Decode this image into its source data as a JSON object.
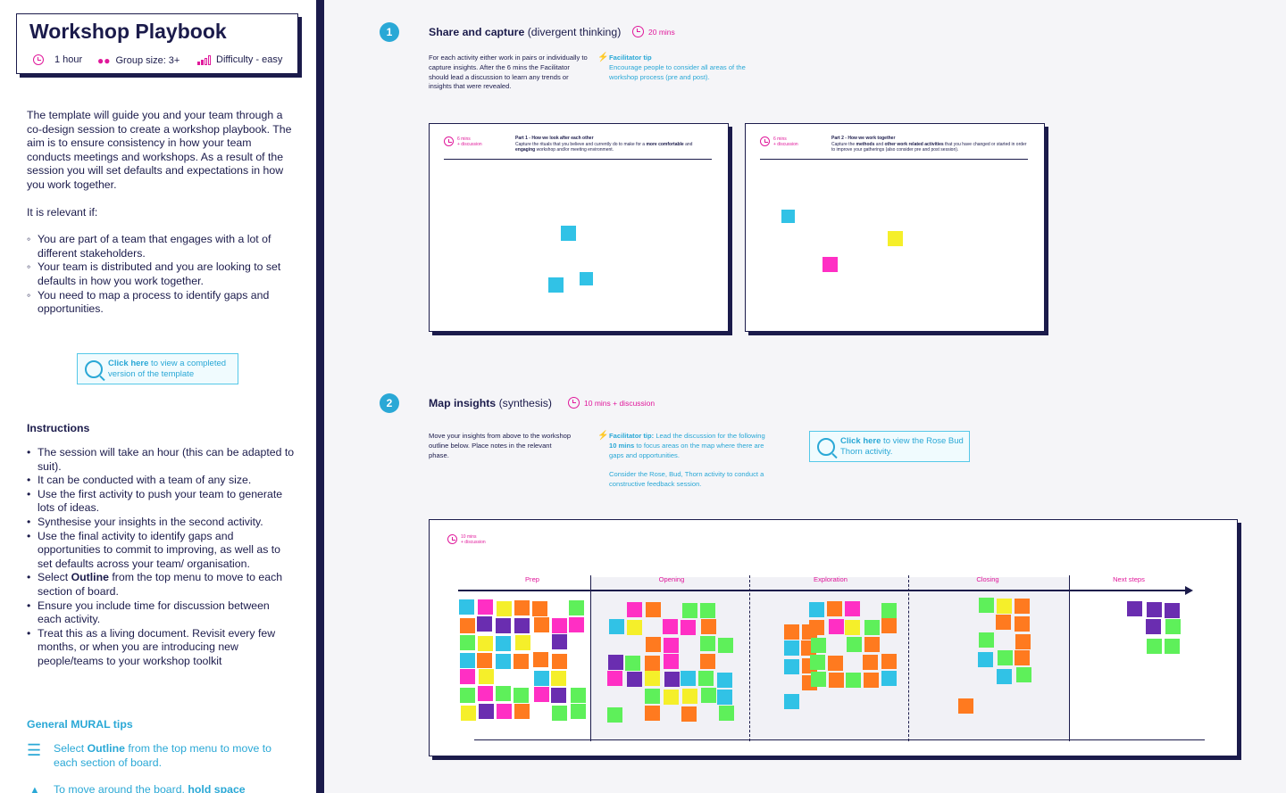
{
  "sidebar": {
    "title": "Workshop Playbook",
    "meta": {
      "duration": "1 hour",
      "group_size": "Group size: 3+",
      "difficulty": "Difficulty - easy"
    },
    "intro": [
      "The template will guide you and your team through a co-design session to create a workshop playbook. The aim is to ensure consistency in how your team conducts meetings and workshops. As a result of the session you will set defaults and expectations in how you work together.",
      "It is relevant if:"
    ],
    "relevant_items": [
      "You are part of a team that engages with a lot of different stakeholders.",
      "Your team is distributed and you are looking to set defaults in how you work together.",
      "You need to map a process to identify gaps and opportunities."
    ],
    "link_card": {
      "bold": "Click here",
      "text": " to view a completed version of the template"
    },
    "instructions_heading": "Instructions",
    "instructions": [
      "The session will take an hour (this can be adapted to suit).",
      "It can be conducted with a team of any size.",
      "Use the first activity to push your team to generate lots of ideas.",
      "Synthesise your insights in the second activity.",
      "Use the final activity to identify gaps and opportunities to commit to improving, as well as to set defaults across your team/ organisation.",
      "Ensure you include time for discussion between each activity.",
      "Treat this as a living document. Revisit every few months, or when you are introducing new people/teams to your workshop toolkit"
    ],
    "instruction_outline": {
      "pre": "Select ",
      "bold": "Outline",
      "post": " from the top menu to move to each section of board."
    },
    "tips_heading": "General MURAL tips",
    "tip1": {
      "pre": "Select ",
      "bold": "Outline",
      "post": " from the top menu to move to each section of board."
    },
    "tip2": {
      "pre": "To move around the board, ",
      "bold": "hold space"
    }
  },
  "step1": {
    "number": "1",
    "title_bold": "Share and capture",
    "title_rest": " (divergent thinking)",
    "time": "20 mins",
    "description": "For each activity either work in pairs or individually to capture insights. After the 6 mins the Facilitator should lead a discussion to learn any trends or insights that were revealed.",
    "tip_label": "Facilitator tip",
    "tip_text": "Encourage people to consider all areas of the workshop process (pre and post).",
    "frame1": {
      "time": "6 mins",
      "time2": "+ discussion",
      "part_title": "Part 1 - How we look after each other",
      "part_text_pre": "Capture the rituals that you believe and currently do to make for a ",
      "part_bold1": "more comfortable",
      "part_mid": " and ",
      "part_bold2": "engaging",
      "part_post": " workshop and/or meeting environment."
    },
    "frame2": {
      "time": "6 mins",
      "time2": "+ discussion",
      "part_title": "Part 2 - How we work together",
      "part_text_pre": "Capture the ",
      "part_bold1": "methods",
      "part_mid": " and ",
      "part_bold2": "other work related activities",
      "part_post": " that you have changed or started in order to improve your gatherings (also consider pre and post session)."
    }
  },
  "step2": {
    "number": "2",
    "title_bold": "Map insights",
    "title_rest": " (synthesis)",
    "time": "10 mins + discussion",
    "description": "Move your insights from above to the workshop outline below. Place notes in the relevant phase.",
    "tip_label": "Facilitator tip:",
    "tip_pre": " Lead the discussion for the following ",
    "tip_bold": "10 mins",
    "tip_post": " to focus areas on the map where there are gaps and opportunities.",
    "tip_extra": "Consider the Rose, Bud, Thorn activity to conduct a constructive feedback session.",
    "link_card": {
      "bold": "Click here",
      "text": " to view the Rose Bud Thorn activity."
    },
    "frame": {
      "time": "10 mins",
      "time2": "+ discussion",
      "phases": [
        "Prep",
        "Opening",
        "Exploration",
        "Closing",
        "Next steps"
      ]
    }
  },
  "colors": {
    "navy": "#1b1b4b",
    "accent": "#2aa8d6",
    "pink": "#e0199b",
    "sticky_green": "#5ef05a",
    "sticky_yellow": "#f5ef2a",
    "sticky_orange": "#ff7a1f",
    "sticky_pink": "#ff2fc4",
    "sticky_purple": "#6a2db0",
    "sticky_cyan": "#31c2e6"
  }
}
